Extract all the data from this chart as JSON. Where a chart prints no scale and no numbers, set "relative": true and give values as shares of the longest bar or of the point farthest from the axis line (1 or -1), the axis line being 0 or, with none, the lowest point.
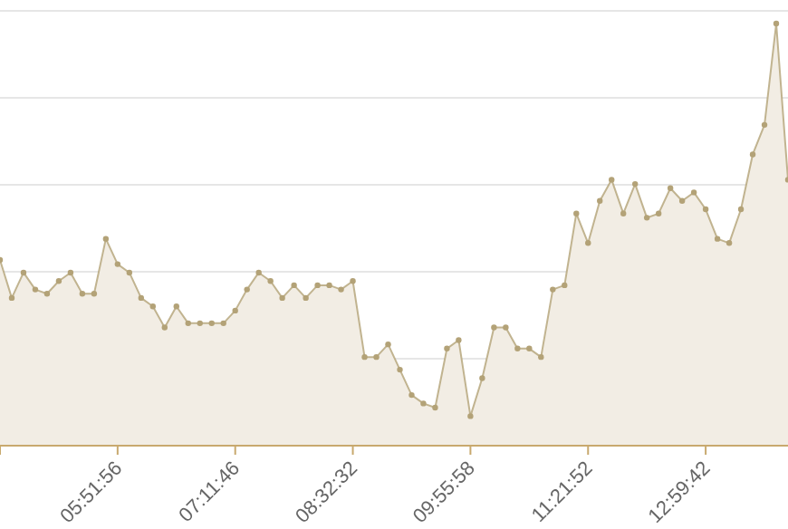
{
  "chart_data": {
    "type": "area",
    "relative": true,
    "grid": "y",
    "marker": "circle",
    "line_style": "solid",
    "categories": [
      null,
      null,
      null,
      null,
      null,
      null,
      null,
      null,
      null,
      null,
      "05:51:56",
      null,
      null,
      null,
      null,
      null,
      null,
      null,
      null,
      null,
      "07:11:46",
      null,
      null,
      null,
      null,
      null,
      null,
      null,
      null,
      null,
      "08:32:32",
      null,
      null,
      null,
      null,
      null,
      null,
      null,
      null,
      null,
      "09:55:58",
      null,
      null,
      null,
      null,
      null,
      null,
      null,
      null,
      null,
      "11:21:52",
      null,
      null,
      null,
      null,
      null,
      null,
      null,
      null,
      null,
      "12:59:42",
      null,
      null,
      null,
      null,
      null,
      null,
      null
    ],
    "series": [
      {
        "color": "#b3a277",
        "values": [
          0.44,
          0.35,
          0.41,
          0.37,
          0.36,
          0.39,
          0.41,
          0.36,
          0.36,
          0.49,
          0.43,
          0.41,
          0.35,
          0.33,
          0.28,
          0.33,
          0.29,
          0.29,
          0.29,
          0.29,
          0.32,
          0.37,
          0.41,
          0.39,
          0.35,
          0.38,
          0.35,
          0.38,
          0.38,
          0.37,
          0.39,
          0.21,
          0.21,
          0.24,
          0.18,
          0.12,
          0.1,
          0.09,
          0.23,
          0.25,
          0.07,
          0.16,
          0.28,
          0.28,
          0.23,
          0.23,
          0.21,
          0.37,
          0.38,
          0.55,
          0.48,
          0.58,
          0.63,
          0.55,
          0.62,
          0.54,
          0.55,
          0.61,
          0.58,
          0.6,
          0.56,
          0.49,
          0.48,
          0.56,
          0.69,
          0.76,
          1.0,
          0.63
        ]
      }
    ]
  }
}
